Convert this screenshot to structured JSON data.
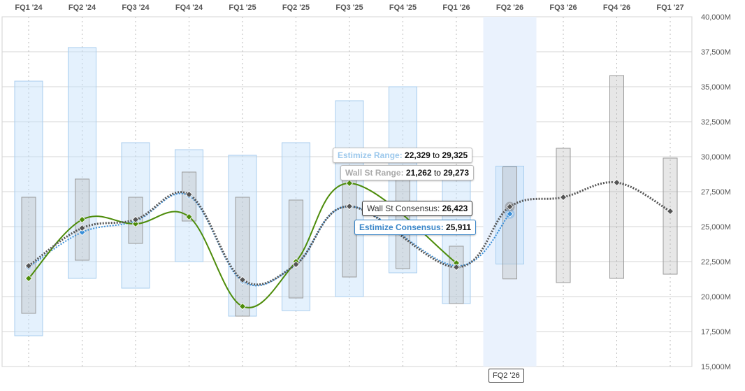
{
  "chart_data": {
    "type": "line",
    "categories": [
      "FQ1 '24",
      "FQ2 '24",
      "FQ3 '24",
      "FQ4 '24",
      "FQ1 '25",
      "FQ2 '25",
      "FQ3 '25",
      "FQ4 '25",
      "FQ1 '26",
      "FQ2 '26",
      "FQ3 '26",
      "FQ4 '26",
      "FQ1 '27"
    ],
    "y_ticks": [
      "15,000M",
      "17,500M",
      "20,000M",
      "22,500M",
      "25,000M",
      "27,500M",
      "30,000M",
      "32,500M",
      "35,000M",
      "37,500M",
      "40,000M"
    ],
    "ylim": [
      15000,
      40000
    ],
    "unit": "M",
    "grid": true,
    "series": [
      {
        "kind": "actual",
        "color": "#4d8c0a",
        "values": [
          21300,
          25500,
          25200,
          25700,
          19300,
          22500,
          28100,
          null,
          22400,
          null,
          null,
          null,
          null
        ]
      },
      {
        "kind": "wallst",
        "color": "#555555",
        "values": [
          22200,
          24900,
          25500,
          27300,
          21200,
          22300,
          26450,
          null,
          22100,
          26423,
          27100,
          28150,
          26100
        ]
      },
      {
        "kind": "estimize",
        "color": "#3a8fd8",
        "values": [
          22100,
          24600,
          25400,
          27200,
          21100,
          22300,
          26450,
          null,
          22200,
          25911,
          null,
          null,
          null
        ]
      }
    ],
    "estimize_range": [
      [
        17200,
        35400
      ],
      [
        21300,
        37800
      ],
      [
        20600,
        31000
      ],
      [
        22500,
        30500
      ],
      [
        18600,
        30100
      ],
      [
        19000,
        31000
      ],
      [
        20000,
        34000
      ],
      [
        21700,
        35000
      ],
      [
        19500,
        29000
      ],
      [
        22329,
        29325
      ],
      null,
      null,
      null
    ],
    "wallst_range": [
      [
        18800,
        27100
      ],
      [
        22600,
        28400
      ],
      [
        23800,
        27100
      ],
      [
        25400,
        28900
      ],
      [
        18600,
        27100
      ],
      [
        19900,
        26900
      ],
      [
        21400,
        28800
      ],
      [
        22000,
        28600
      ],
      [
        19500,
        23600
      ],
      [
        21262,
        29273
      ],
      [
        21000,
        30600
      ],
      [
        21300,
        35800
      ],
      [
        21600,
        29900
      ]
    ],
    "highlight_index": 9,
    "tooltips": {
      "estimize_range": {
        "label": "Estimize Range",
        "low": "22,329",
        "sep": "to",
        "high": "29,325"
      },
      "wallst_range": {
        "label": "Wall St Range",
        "low": "21,262",
        "sep": "to",
        "high": "29,273"
      },
      "wallst_consensus": {
        "label": "Wall St Consensus",
        "value": "26,423"
      },
      "estimize_consensus": {
        "label": "Estimize Consensus",
        "value": "25,911"
      },
      "x_label": "FQ2 '26"
    }
  }
}
